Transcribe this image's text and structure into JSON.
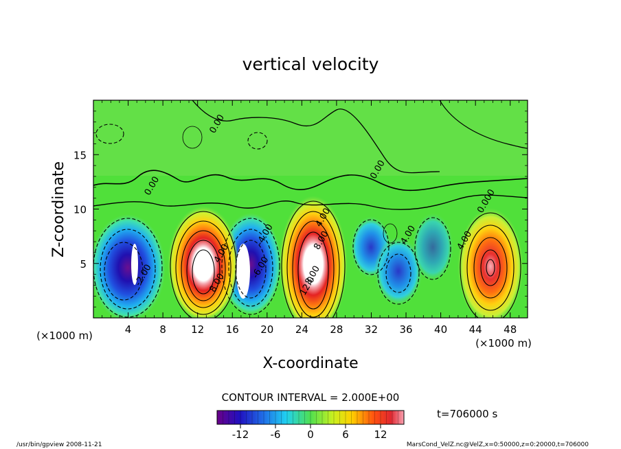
{
  "chart_data": {
    "type": "contour",
    "title": "vertical velocity",
    "xlabel": "X-coordinate",
    "ylabel": "Z-coordinate",
    "x_unit_left": "(×1000 m)",
    "x_unit_right": "(×1000 m)",
    "xlim": [
      0,
      50
    ],
    "ylim": [
      0,
      20
    ],
    "xticks": [
      4,
      8,
      12,
      16,
      20,
      24,
      28,
      32,
      36,
      40,
      44,
      48
    ],
    "yticks": [
      5,
      10,
      15
    ],
    "contour_interval_text": "CONTOUR INTERVAL = 2.000E+00",
    "time_text": "t=706000 s",
    "colorbar": {
      "range": [
        -16,
        16
      ],
      "ticks": [
        -12,
        -6,
        0,
        6,
        12
      ]
    },
    "contour_labels": [
      {
        "text": "0.00",
        "x": 14.5,
        "y": 17.7
      },
      {
        "text": "0.00",
        "x": 7.0,
        "y": 12.0
      },
      {
        "text": "0.00",
        "x": 33.0,
        "y": 13.5
      },
      {
        "text": "0.000",
        "x": 45.5,
        "y": 10.6
      },
      {
        "text": "-2.00",
        "x": 6.0,
        "y": 3.8
      },
      {
        "text": "-4.00",
        "x": 20.0,
        "y": 7.5
      },
      {
        "text": "-6.00",
        "x": 19.5,
        "y": 4.5
      },
      {
        "text": "4.00",
        "x": 15.0,
        "y": 5.8
      },
      {
        "text": "8.00",
        "x": 14.5,
        "y": 3.1
      },
      {
        "text": "4.00",
        "x": 26.7,
        "y": 9.1
      },
      {
        "text": "8.00",
        "x": 26.5,
        "y": 7.0
      },
      {
        "text": "8.00",
        "x": 25.5,
        "y": 3.8
      },
      {
        "text": "12.0",
        "x": 24.9,
        "y": 2.8
      },
      {
        "text": "4.00",
        "x": 36.5,
        "y": 7.5
      },
      {
        "text": "4.00",
        "x": 43.0,
        "y": 7.0
      }
    ],
    "footer_left": "/usr/bin/gpview   2008-11-21",
    "footer_right": "MarsCond_VelZ.nc@VelZ,x=0:50000,z=0:20000,t=706000"
  }
}
